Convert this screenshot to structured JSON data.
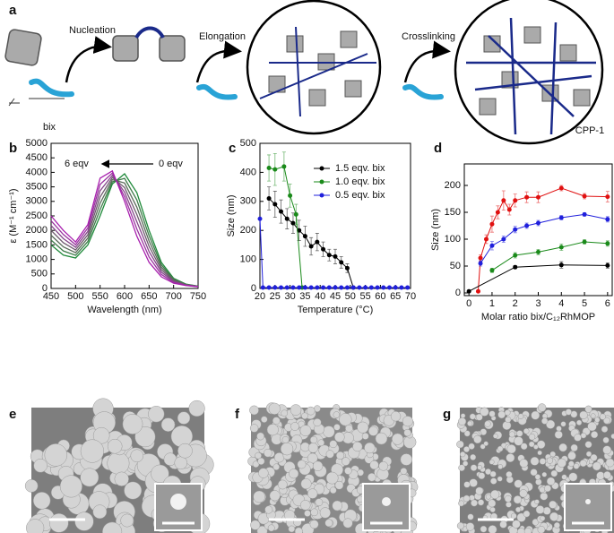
{
  "panel_labels": [
    "a",
    "b",
    "c",
    "d",
    "e",
    "f",
    "g"
  ],
  "scheme": {
    "steps": [
      "Nucleation",
      "Elongation",
      "Crosslinking"
    ],
    "linker": "bix",
    "product": "CPP-1"
  },
  "chart_data": [
    {
      "type": "line",
      "x_label": "Wavelength (nm)",
      "y_label": "ε (M⁻¹ cm⁻¹)",
      "annotations": [
        "6 eqv",
        "0 eqv"
      ],
      "x": [
        450,
        475,
        500,
        525,
        550,
        575,
        600,
        625,
        650,
        675,
        700,
        725,
        750
      ],
      "xlim": [
        450,
        750
      ],
      "xticks": [
        450,
        500,
        550,
        600,
        650,
        700,
        750
      ],
      "ylim": [
        0,
        5000
      ],
      "yticks": [
        0,
        500,
        1000,
        1500,
        2000,
        2500,
        3000,
        3500,
        4000,
        4500,
        5000
      ],
      "markers": false,
      "series": [
        {
          "color": "#1f8a3a",
          "values": [
            1500,
            1150,
            1050,
            1500,
            2500,
            3600,
            3950,
            3300,
            2000,
            900,
            350,
            150,
            80
          ]
        },
        {
          "color": "#3f7c4a",
          "values": [
            1667,
            1292,
            1142,
            1617,
            2717,
            3675,
            3792,
            3050,
            1817,
            817,
            322,
            142,
            77
          ]
        },
        {
          "color": "#5a6b5a",
          "values": [
            1833,
            1433,
            1233,
            1733,
            2933,
            3750,
            3633,
            2800,
            1633,
            733,
            293,
            133,
            73
          ]
        },
        {
          "color": "#6e5a6e",
          "values": [
            2000,
            1575,
            1325,
            1850,
            3150,
            3825,
            3475,
            2550,
            1450,
            650,
            265,
            125,
            70
          ]
        },
        {
          "color": "#85468a",
          "values": [
            2167,
            1717,
            1417,
            1967,
            3367,
            3900,
            3317,
            2300,
            1267,
            567,
            237,
            117,
            67
          ]
        },
        {
          "color": "#9a34a0",
          "values": [
            2333,
            1858,
            1508,
            2083,
            3583,
            3975,
            3158,
            2050,
            1083,
            483,
            208,
            108,
            63
          ]
        },
        {
          "color": "#a81fae",
          "values": [
            2500,
            2000,
            1600,
            2200,
            3800,
            4050,
            3000,
            1800,
            900,
            400,
            180,
            100,
            60
          ]
        }
      ]
    },
    {
      "type": "line",
      "x_label": "Temperature (°C)",
      "y_label": "Size (nm)",
      "xlim": [
        20,
        70
      ],
      "xticks": [
        20,
        25,
        30,
        35,
        40,
        45,
        50,
        55,
        60,
        65,
        70
      ],
      "ylim": [
        0,
        500
      ],
      "yticks": [
        0,
        100,
        200,
        300,
        400,
        500
      ],
      "markers": true,
      "legend": "upper right",
      "series": [
        {
          "name": "1.5 eqv. bix",
          "color": "#000000",
          "x": [
            23,
            25,
            27,
            29,
            31,
            33,
            35,
            37,
            39,
            41,
            43,
            45,
            47,
            49,
            51
          ],
          "values": [
            310,
            290,
            265,
            240,
            225,
            200,
            180,
            145,
            160,
            135,
            115,
            110,
            90,
            70,
            3
          ],
          "errors": [
            40,
            45,
            40,
            35,
            35,
            35,
            35,
            30,
            30,
            25,
            20,
            25,
            20,
            15,
            0
          ]
        },
        {
          "name": "1.0 eqv. bix",
          "color": "#1a8a1a",
          "x": [
            23,
            25,
            28,
            30,
            32,
            34
          ],
          "values": [
            415,
            410,
            420,
            320,
            255,
            3
          ],
          "errors": [
            45,
            55,
            50,
            40,
            35,
            0
          ]
        },
        {
          "name": "0.5 eqv. bix",
          "color": "#1f1fdc",
          "x": [
            20,
            21,
            23,
            25,
            27,
            29,
            31,
            33,
            35,
            37,
            39,
            41,
            43,
            45,
            47,
            49,
            51,
            53,
            55,
            57,
            59,
            61,
            63,
            65,
            67,
            69
          ],
          "values": [
            240,
            3,
            3,
            3,
            3,
            3,
            3,
            3,
            3,
            3,
            3,
            3,
            3,
            3,
            3,
            3,
            3,
            3,
            3,
            3,
            3,
            3,
            3,
            3,
            3,
            3
          ]
        }
      ]
    },
    {
      "type": "line",
      "x_label": "Molar ratio bix/C₁₂RhMOP",
      "y_label": "Size (nm)",
      "xlim": [
        -0.2,
        6.2
      ],
      "xticks": [
        0,
        1,
        2,
        3,
        4,
        5,
        6
      ],
      "ylim": [
        -5,
        240
      ],
      "yticks": [
        0,
        50,
        100,
        150,
        200
      ],
      "markers": true,
      "series": [
        {
          "color": "#e01010",
          "x": [
            0.4,
            0.5,
            0.75,
            1,
            1.25,
            1.5,
            1.75,
            2,
            2.5,
            3,
            4,
            5,
            6
          ],
          "values": [
            3,
            65,
            100,
            128,
            150,
            172,
            155,
            172,
            178,
            178,
            195,
            180,
            179
          ],
          "errors": [
            0,
            6,
            8,
            15,
            12,
            18,
            10,
            12,
            10,
            10,
            5,
            5,
            10
          ]
        },
        {
          "color": "#1f1fdc",
          "x": [
            0.5,
            1,
            1.5,
            2,
            2.5,
            3,
            4,
            5,
            6
          ],
          "values": [
            55,
            88,
            100,
            118,
            125,
            130,
            140,
            146,
            137
          ],
          "errors": [
            5,
            8,
            6,
            6,
            5,
            5,
            4,
            3,
            5
          ]
        },
        {
          "color": "#1a8a1a",
          "x": [
            1,
            2,
            3,
            4,
            5,
            6
          ],
          "values": [
            42,
            70,
            76,
            85,
            95,
            92
          ],
          "errors": [
            4,
            5,
            5,
            6,
            4,
            5
          ]
        },
        {
          "color": "#000000",
          "x": [
            0,
            2,
            4,
            6
          ],
          "values": [
            3,
            48,
            52,
            51
          ],
          "errors": [
            0,
            3,
            6,
            5
          ]
        }
      ]
    }
  ]
}
